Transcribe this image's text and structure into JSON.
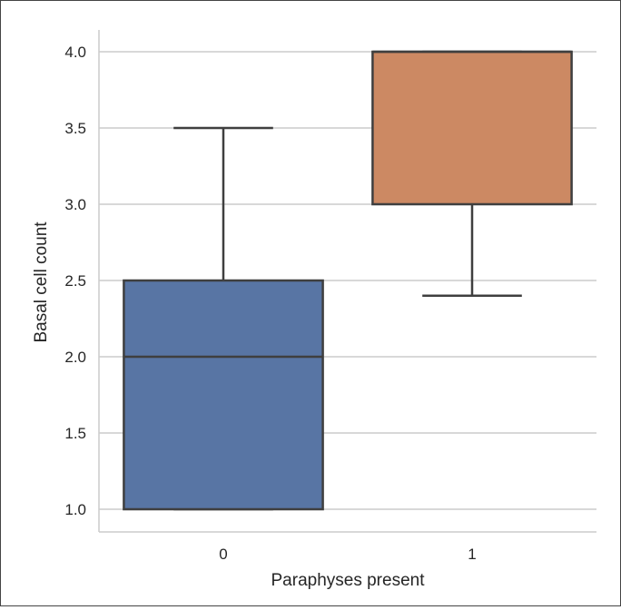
{
  "chart_data": {
    "type": "box",
    "categories": [
      "0",
      "1"
    ],
    "xlabel": "Paraphyses present",
    "ylabel": "Basal cell count",
    "ylim": [
      1.0,
      4.0
    ],
    "yticks": [
      "1.0",
      "1.5",
      "2.0",
      "2.5",
      "3.0",
      "3.5",
      "4.0"
    ],
    "grid": "horizontal",
    "boxes": [
      {
        "category": "0",
        "whisker_low": 1.0,
        "q1": 1.0,
        "median": 2.0,
        "q3": 2.5,
        "whisker_high": 3.5,
        "color": "#5875a4"
      },
      {
        "category": "1",
        "whisker_low": 2.4,
        "q1": 3.0,
        "median": 4.0,
        "q3": 4.0,
        "whisker_high": 4.0,
        "color": "#cc8963"
      }
    ]
  }
}
